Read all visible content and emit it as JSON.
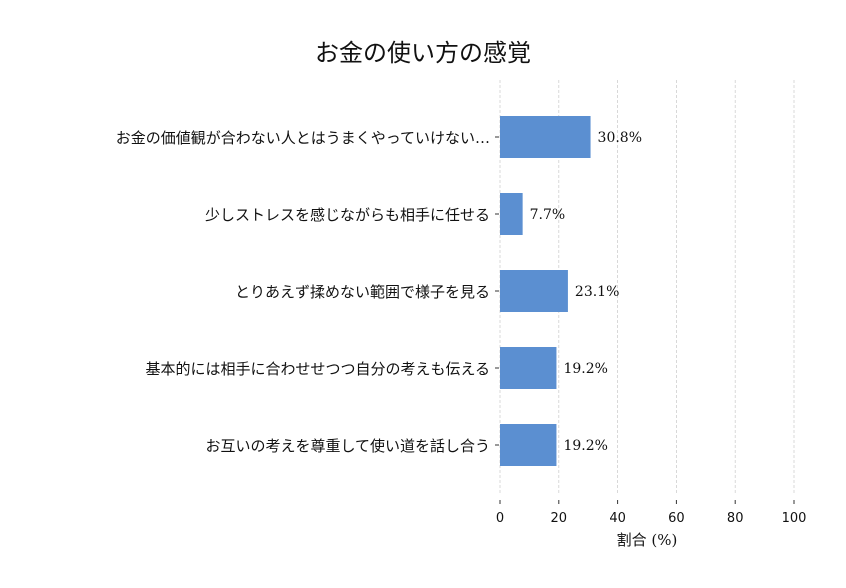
{
  "chart_data": {
    "type": "bar",
    "orientation": "horizontal",
    "title": "お金の使い方の感覚",
    "xlabel": "割合 (%)",
    "ylabel": "",
    "xlim": [
      0,
      100
    ],
    "xticks": [
      "0",
      "20",
      "40",
      "60",
      "80",
      "100"
    ],
    "grid": "vertical dashed",
    "categories": [
      "お金の価値観が合わない人とはうまくやっていけない…",
      "少しストレスを感じながらも相手に任せる",
      "とりあえず揉めない範囲で様子を見る",
      "基本的には相手に合わせせつつ自分の考えも伝える",
      "お互いの考えを尊重して使い道を話し合う"
    ],
    "values": [
      30.8,
      7.7,
      23.1,
      19.2,
      19.2
    ],
    "data_labels": [
      "30.8%",
      "7.7%",
      "23.1%",
      "19.2%",
      "19.2%"
    ],
    "bar_color": "#5b8fd1"
  }
}
